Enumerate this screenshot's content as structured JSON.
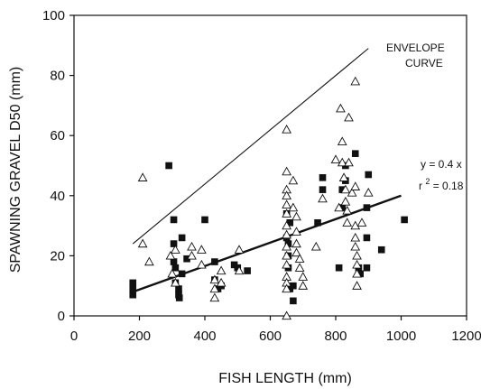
{
  "chart_data": {
    "type": "scatter",
    "xlabel": "FISH LENGTH (mm)",
    "ylabel": "SPAWNING GRAVEL D50 (mm)",
    "xlim": [
      0,
      1200
    ],
    "ylim": [
      0,
      100
    ],
    "xticks": [
      "0",
      "200",
      "400",
      "600",
      "800",
      "1000",
      "1200"
    ],
    "yticks": [
      "0",
      "20",
      "40",
      "60",
      "80",
      "100"
    ],
    "grid": false,
    "series": [
      {
        "marker": "filled-square",
        "color": "#111111",
        "points": [
          [
            180,
            11
          ],
          [
            180,
            9
          ],
          [
            180,
            7
          ],
          [
            290,
            50
          ],
          [
            305,
            32
          ],
          [
            305,
            24
          ],
          [
            305,
            18
          ],
          [
            310,
            16
          ],
          [
            310,
            11
          ],
          [
            320,
            9
          ],
          [
            320,
            7
          ],
          [
            322,
            6
          ],
          [
            330,
            26
          ],
          [
            330,
            14
          ],
          [
            345,
            19
          ],
          [
            400,
            32
          ],
          [
            430,
            18
          ],
          [
            430,
            12
          ],
          [
            440,
            9
          ],
          [
            450,
            10
          ],
          [
            490,
            17
          ],
          [
            500,
            16
          ],
          [
            530,
            15
          ],
          [
            650,
            34
          ],
          [
            650,
            26
          ],
          [
            655,
            24
          ],
          [
            655,
            20
          ],
          [
            655,
            16
          ],
          [
            660,
            9
          ],
          [
            660,
            31
          ],
          [
            670,
            5
          ],
          [
            670,
            10
          ],
          [
            745,
            31
          ],
          [
            760,
            42
          ],
          [
            760,
            46
          ],
          [
            810,
            16
          ],
          [
            820,
            36
          ],
          [
            820,
            42
          ],
          [
            830,
            45
          ],
          [
            830,
            50
          ],
          [
            860,
            54
          ],
          [
            870,
            16
          ],
          [
            875,
            14
          ],
          [
            895,
            26
          ],
          [
            895,
            16
          ],
          [
            895,
            36
          ],
          [
            900,
            47
          ],
          [
            940,
            22
          ],
          [
            1010,
            32
          ]
        ]
      },
      {
        "marker": "open-triangle",
        "color": "#111111",
        "points": [
          [
            210,
            46
          ],
          [
            210,
            24
          ],
          [
            230,
            18
          ],
          [
            295,
            20
          ],
          [
            300,
            14
          ],
          [
            310,
            11
          ],
          [
            310,
            22
          ],
          [
            360,
            23
          ],
          [
            360,
            20
          ],
          [
            390,
            22
          ],
          [
            390,
            17
          ],
          [
            430,
            12
          ],
          [
            430,
            9
          ],
          [
            430,
            6
          ],
          [
            450,
            15
          ],
          [
            450,
            11
          ],
          [
            505,
            22
          ],
          [
            505,
            15
          ],
          [
            650,
            62
          ],
          [
            650,
            48
          ],
          [
            650,
            42
          ],
          [
            650,
            40
          ],
          [
            650,
            37
          ],
          [
            650,
            34
          ],
          [
            650,
            30
          ],
          [
            650,
            27
          ],
          [
            650,
            23
          ],
          [
            650,
            20
          ],
          [
            650,
            17
          ],
          [
            650,
            13
          ],
          [
            650,
            11
          ],
          [
            650,
            9
          ],
          [
            650,
            0
          ],
          [
            670,
            45
          ],
          [
            670,
            36
          ],
          [
            680,
            33
          ],
          [
            680,
            28
          ],
          [
            680,
            24
          ],
          [
            680,
            21
          ],
          [
            690,
            19
          ],
          [
            690,
            16
          ],
          [
            700,
            13
          ],
          [
            700,
            10
          ],
          [
            740,
            23
          ],
          [
            760,
            39
          ],
          [
            800,
            52
          ],
          [
            810,
            36
          ],
          [
            815,
            69
          ],
          [
            820,
            58
          ],
          [
            820,
            51
          ],
          [
            825,
            46
          ],
          [
            830,
            42
          ],
          [
            830,
            38
          ],
          [
            835,
            35
          ],
          [
            835,
            31
          ],
          [
            840,
            66
          ],
          [
            840,
            51
          ],
          [
            850,
            41
          ],
          [
            860,
            43
          ],
          [
            860,
            78
          ],
          [
            860,
            30
          ],
          [
            860,
            26
          ],
          [
            860,
            23
          ],
          [
            865,
            20
          ],
          [
            865,
            17
          ],
          [
            865,
            14
          ],
          [
            865,
            10
          ],
          [
            880,
            31
          ],
          [
            900,
            41
          ]
        ]
      }
    ],
    "fit_line": {
      "x": [
        180,
        1000
      ],
      "y": [
        8,
        40
      ]
    },
    "envelope_line": {
      "x": [
        180,
        900
      ],
      "y": [
        24,
        89
      ]
    },
    "annotations": {
      "envelope_label_1": "ENVELOPE",
      "envelope_label_2": "CURVE",
      "equation": "y = 0.4 x",
      "r_squared_prefix": "r",
      "r_squared_exponent": "2",
      "r_squared_value": " = 0.18"
    }
  }
}
